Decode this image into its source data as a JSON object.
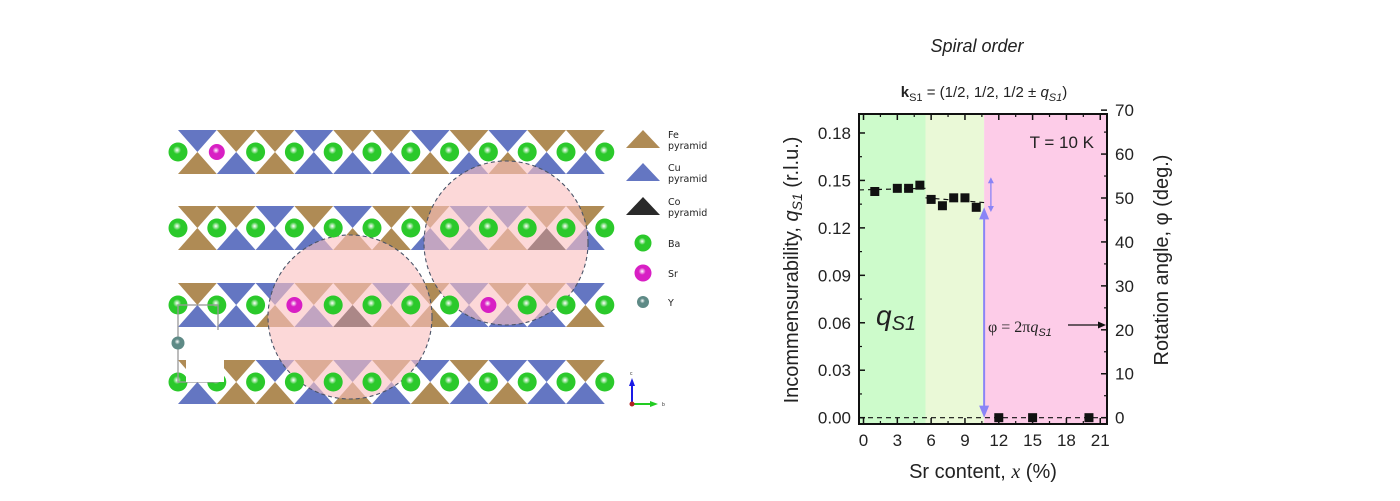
{
  "structure": {
    "colors": {
      "fe": "#AF8B55",
      "cu": "#6476C2",
      "co": "#2A2A2A",
      "ba": "#2BC92B",
      "sr": "#D81FC4",
      "y": "#5E8A86",
      "highlight": "#FAC0C0"
    },
    "legend": [
      {
        "name": "legend-fe-pyramid",
        "shape": "triangle",
        "color_key": "fe",
        "line1": "Fe",
        "line2": "pyramid"
      },
      {
        "name": "legend-cu-pyramid",
        "shape": "triangle",
        "color_key": "cu",
        "line1": "Cu",
        "line2": "pyramid"
      },
      {
        "name": "legend-co-pyramid",
        "shape": "triangle",
        "color_key": "co",
        "line1": "Co",
        "line2": "pyramid"
      },
      {
        "name": "legend-ba",
        "shape": "sphere",
        "color_key": "ba",
        "line1": "Ba",
        "line2": ""
      },
      {
        "name": "legend-sr",
        "shape": "sphere",
        "color_key": "sr",
        "line1": "Sr",
        "line2": ""
      },
      {
        "name": "legend-y",
        "shape": "sphere-small",
        "color_key": "y",
        "line1": "Y",
        "line2": ""
      }
    ],
    "rows": [
      {
        "top": [
          "cu",
          "fe",
          "fe",
          "cu",
          "fe",
          "fe",
          "cu",
          "fe",
          "cu",
          "fe",
          "fe"
        ],
        "bottom": [
          "fe",
          "cu",
          "fe",
          "cu",
          "cu",
          "cu",
          "fe",
          "cu",
          "fe",
          "cu",
          "cu"
        ],
        "atoms": [
          "ba",
          "sr",
          "ba",
          "ba",
          "ba",
          "ba",
          "ba",
          "ba",
          "ba",
          "ba",
          "ba",
          "ba"
        ]
      },
      {
        "top": [
          "fe",
          "fe",
          "cu",
          "fe",
          "cu",
          "fe",
          "fe",
          "cu",
          "cu",
          "fe",
          "fe"
        ],
        "bottom": [
          "fe",
          "cu",
          "cu",
          "cu",
          "fe",
          "fe",
          "cu",
          "cu",
          "fe",
          "co",
          "cu"
        ],
        "atoms": [
          "ba",
          "ba",
          "ba",
          "ba",
          "ba",
          "ba",
          "ba",
          "ba",
          "ba",
          "ba",
          "ba",
          "ba"
        ]
      },
      {
        "top": [
          "fe",
          "cu",
          "cu",
          "fe",
          "fe",
          "cu",
          "fe",
          "cu",
          "fe",
          "fe",
          "cu"
        ],
        "bottom": [
          "cu",
          "cu",
          "fe",
          "cu",
          "co",
          "fe",
          "fe",
          "cu",
          "cu",
          "cu",
          "fe"
        ],
        "atoms": [
          "ba",
          "ba",
          "ba",
          "sr",
          "ba",
          "ba",
          "ba",
          "ba",
          "sr",
          "ba",
          "ba",
          "ba"
        ]
      },
      {
        "top": [
          "fe",
          "fe",
          "cu",
          "fe",
          "cu",
          "fe",
          "cu",
          "fe",
          "cu",
          "cu",
          "fe"
        ],
        "bottom": [
          "cu",
          "fe",
          "fe",
          "cu",
          "fe",
          "cu",
          "fe",
          "cu",
          "fe",
          "cu",
          "cu"
        ],
        "atoms": [
          "ba",
          "ba",
          "ba",
          "ba",
          "ba",
          "ba",
          "ba",
          "ba",
          "ba",
          "ba",
          "ba",
          "ba"
        ]
      }
    ],
    "y_atom_label": "Y",
    "axes_indicator": {
      "c_label": "c",
      "b_label": "b"
    }
  },
  "chart_data": {
    "type": "scatter",
    "title": "Spiral order",
    "subtitle_parts": {
      "k": "k",
      "k_sub": "S1",
      "eq": " = (1/2, 1/2, 1/2 ± ",
      "q": "q",
      "q_sub": "S1",
      "close": ")"
    },
    "xlabel": "Sr content, x (%)",
    "xlabel_parts": {
      "pre": "Sr content, ",
      "var": "x",
      "post": " (%)"
    },
    "ylabel": "Incommensurability, q_S1 (r.l.u.)",
    "ylabel_parts": {
      "pre": "Incommensurability, ",
      "q": "q",
      "q_sub": "S1",
      "post": " (r.l.u.)"
    },
    "y2label": "Rotation angle, φ (deg.)",
    "xlim": [
      -0.4,
      21.6
    ],
    "ylim": [
      -0.004,
      0.192
    ],
    "y2lim": [
      -1.44,
      69.12
    ],
    "xticks": [
      0,
      3,
      6,
      9,
      12,
      15,
      18,
      21
    ],
    "yticks": [
      0.0,
      0.03,
      0.06,
      0.09,
      0.12,
      0.15,
      0.18
    ],
    "ytick_labels": [
      "0.00",
      "0.03",
      "0.06",
      "0.09",
      "0.12",
      "0.15",
      "0.18"
    ],
    "y2ticks": [
      0,
      10,
      20,
      30,
      40,
      50,
      60,
      70
    ],
    "regions": [
      {
        "name": "region-1",
        "x_from": -0.4,
        "x_to": 5.5,
        "color": "#CDFBCB"
      },
      {
        "name": "region-2",
        "x_from": 5.5,
        "x_to": 10.7,
        "color": "#EAF9D7"
      },
      {
        "name": "region-3",
        "x_from": 10.7,
        "x_to": 21.6,
        "color": "#FDCCE8"
      }
    ],
    "series": [
      {
        "name": "q_S1",
        "marker": "square",
        "color": "#111111",
        "x": [
          1,
          3,
          4,
          5,
          6,
          7,
          8,
          9,
          10,
          12,
          15,
          20
        ],
        "y": [
          0.143,
          0.145,
          0.145,
          0.147,
          0.138,
          0.134,
          0.139,
          0.139,
          0.133,
          0.0,
          0.0,
          0.0
        ]
      }
    ],
    "guide_lines": [
      {
        "name": "guide-line-1",
        "x": [
          -0.4,
          5.5
        ],
        "y": [
          0.144,
          0.145
        ]
      },
      {
        "name": "guide-line-2",
        "x": [
          5.5,
          10.7
        ],
        "y": [
          0.139,
          0.136
        ]
      },
      {
        "name": "guide-line-zero",
        "x": [
          -0.4,
          21.6
        ],
        "y": [
          0.0,
          0.0
        ]
      }
    ],
    "annotations": {
      "temperature": "T = 10 K",
      "qs1_label": {
        "q": "q",
        "sub": "S1"
      },
      "phi_eq": {
        "pre": "φ = 2π",
        "q": "q",
        "sub": "S1"
      },
      "arrow_color": "#8A84F6",
      "transition_x": 10.7,
      "jump_arrow": {
        "from_y": 0.0,
        "to_y": 0.133
      },
      "double_arrow": {
        "x": 11.3,
        "y_from": 0.13,
        "y_to": 0.152
      }
    },
    "grid": false,
    "legend": "none"
  }
}
